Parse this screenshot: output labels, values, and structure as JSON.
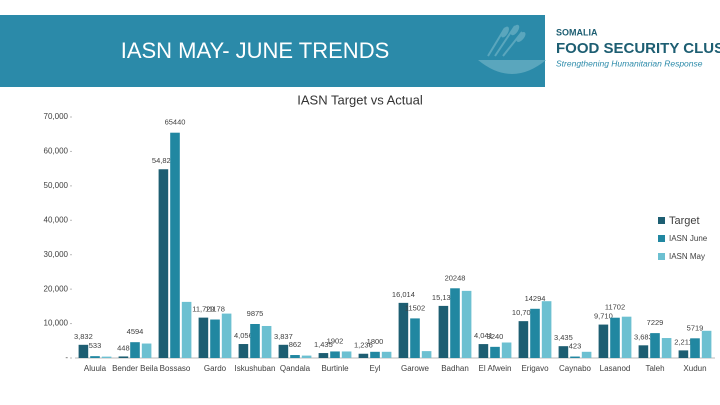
{
  "header": {
    "title": "IASN MAY- JUNE TRENDS",
    "logo": {
      "line1": "SOMALIA",
      "line2": "FOOD SECURITY CLUSTER",
      "line3": "Strengthening Humanitarian Response"
    }
  },
  "chart_data": {
    "type": "bar",
    "title": "IASN Target vs Actual",
    "categories": [
      "Aluula",
      "Bender Beila",
      "Bossaso",
      "Gardo",
      "Iskushuban",
      "Qandala",
      "Burtinle",
      "Eyl",
      "Garowe",
      "Badhan",
      "El Afwein",
      "Erigavo",
      "Caynabo",
      "Lasanod",
      "Taleh",
      "Xudun"
    ],
    "series": [
      {
        "name": "Target",
        "color": "#1d5e72",
        "values": [
          3832,
          448,
          54822,
          11729,
          4056,
          3837,
          1435,
          1236,
          16014,
          15134,
          4041,
          10703,
          3435,
          9710,
          3683,
          2211
        ],
        "value_labels": [
          "3,832",
          "448",
          "54,822",
          "11,729",
          "4,056",
          "3,837",
          "1,435",
          "1,236",
          "16,014",
          "15,134",
          "4,041",
          "10,703",
          "3,435",
          "9,710",
          "3,683",
          "2,211"
        ]
      },
      {
        "name": "IASN June",
        "color": "#2187a1",
        "values": [
          533,
          4594,
          65440,
          11178,
          9875,
          862,
          1902,
          1800,
          11502,
          20248,
          3240,
          14294,
          423,
          11702,
          7229,
          5719
        ],
        "value_labels": [
          "533",
          "4594",
          "65440",
          "11178",
          "9875",
          "862",
          "1902",
          "1800",
          "11502",
          "20248",
          "3240",
          "14294",
          "423",
          "11702",
          "7229",
          "5719"
        ]
      },
      {
        "name": "IASN May",
        "color": "#6cc0d1",
        "values": [
          400,
          4200,
          16300,
          12900,
          9300,
          700,
          1900,
          1800,
          2000,
          19500,
          4500,
          16500,
          1800,
          12000,
          5800,
          7900
        ]
      }
    ],
    "ylim": [
      0,
      70000
    ],
    "yticks": [
      {
        "value": 0,
        "label": "-"
      },
      {
        "value": 10000,
        "label": "10,000"
      },
      {
        "value": 20000,
        "label": "20,000"
      },
      {
        "value": 30000,
        "label": "30,000"
      },
      {
        "value": 40000,
        "label": "40,000"
      },
      {
        "value": 50000,
        "label": "50,000"
      },
      {
        "value": 60000,
        "label": "60,000"
      },
      {
        "value": 70000,
        "label": "70,000"
      }
    ],
    "legend": "right"
  }
}
